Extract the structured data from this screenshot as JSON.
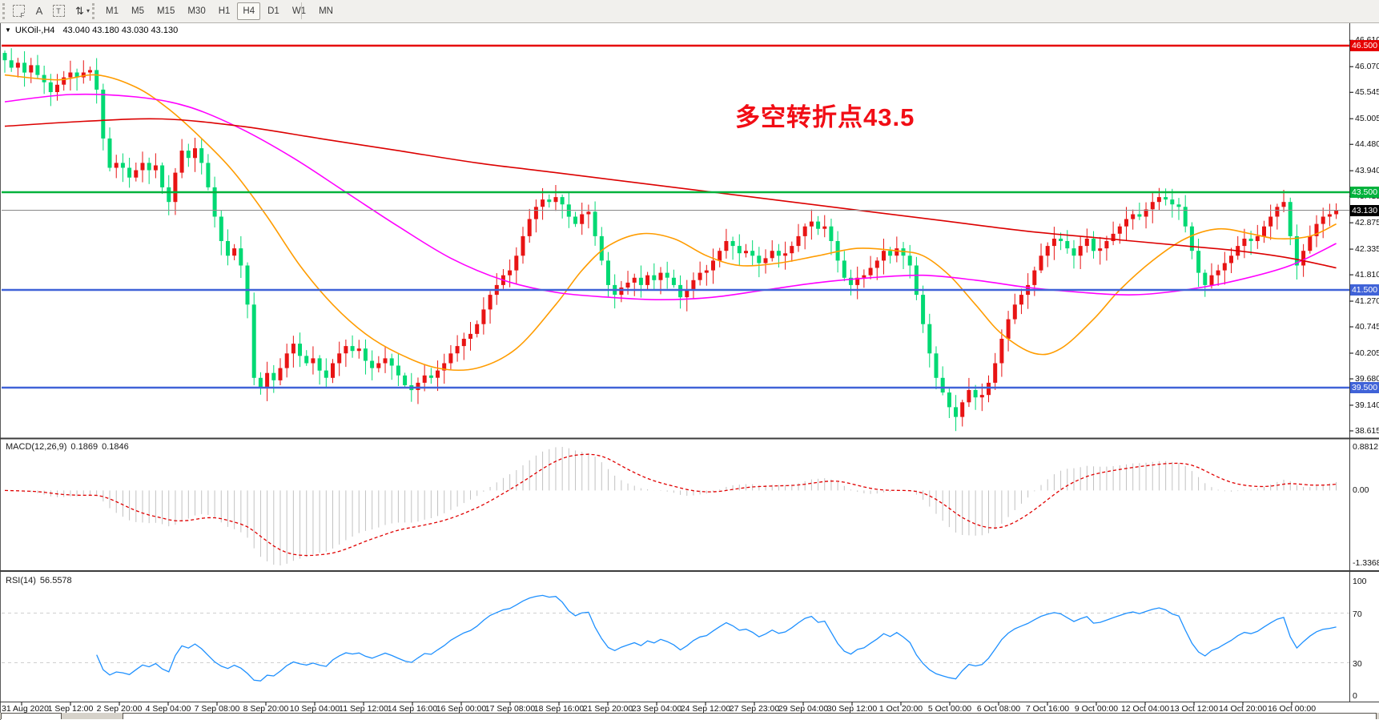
{
  "toolbar": {
    "tools": [
      {
        "id": "fibonacci-tool",
        "glyph": "F"
      },
      {
        "id": "text-tool",
        "glyph": "A"
      },
      {
        "id": "text-label-tool",
        "glyph": "T"
      },
      {
        "id": "arrows-tool",
        "glyph": "⇅",
        "caret": "▾"
      }
    ],
    "timeframes": [
      "M1",
      "M5",
      "M15",
      "M30",
      "H1",
      "H4",
      "D1",
      "W1",
      "MN"
    ],
    "selected_timeframe": "H4"
  },
  "header": {
    "dropdown_glyph": "▼",
    "symbol_period": "UKOil-,H4",
    "ohlc": "43.040 43.180 43.030 43.130"
  },
  "annotation": {
    "text": "多空转折点43.5",
    "color": "#f10d15"
  },
  "indicators": {
    "macd": {
      "label": "MACD(12,26,9)",
      "value_main": "0.1869",
      "value_signal": "0.1846",
      "axis_top": "0.8812",
      "axis_zero": "0.00",
      "axis_bottom": "-1.3368",
      "histogram_color": "#c2c2c2",
      "signal_color": "#e00000"
    },
    "rsi": {
      "label": "RSI(14)",
      "value": "56.5578",
      "axis": [
        "100",
        "70",
        "30",
        "0"
      ],
      "levels": [
        70,
        30
      ],
      "line_color": "#1e90ff",
      "level_color": "#cfcfcf"
    }
  },
  "price_axis": {
    "ticks": [
      "46.610",
      "46.070",
      "45.545",
      "45.005",
      "44.480",
      "43.940",
      "43.415",
      "42.875",
      "42.335",
      "41.810",
      "41.270",
      "40.745",
      "40.205",
      "39.680",
      "39.140",
      "38.615"
    ],
    "badges": [
      {
        "label": "46.500",
        "price": 46.5,
        "bg": "#e60000",
        "fg": "#ffffff"
      },
      {
        "label": "43.500",
        "price": 43.5,
        "bg": "#00b23c",
        "fg": "#ffffff"
      },
      {
        "label": "43.130",
        "price": 43.13,
        "bg": "#000000",
        "fg": "#ffffff"
      },
      {
        "label": "41.500",
        "price": 41.5,
        "bg": "#4063d8",
        "fg": "#ffffff"
      },
      {
        "label": "39.500",
        "price": 39.5,
        "bg": "#4063d8",
        "fg": "#ffffff"
      }
    ]
  },
  "chart_data": {
    "type": "candlestick",
    "symbol": "UKOil-",
    "timeframe": "H4",
    "title": "UKOil-,H4 43.040 43.180 43.030 43.130",
    "price_range": [
      38.45,
      46.98
    ],
    "current_price": 43.13,
    "up_color": "#e81414",
    "down_color": "#00d973",
    "levels": [
      {
        "price": 46.5,
        "color": "#e60000"
      },
      {
        "price": 43.5,
        "color": "#00b23c"
      },
      {
        "price": 41.5,
        "color": "#4063d8"
      },
      {
        "price": 39.5,
        "color": "#4063d8"
      }
    ],
    "first_open": 46.35,
    "closes": [
      46.2,
      46.05,
      46.15,
      45.95,
      46.1,
      45.9,
      45.75,
      45.55,
      45.7,
      45.85,
      45.95,
      45.85,
      45.95,
      46.0,
      45.6,
      44.6,
      44.0,
      44.1,
      44.0,
      43.8,
      43.95,
      44.1,
      43.95,
      44.05,
      43.6,
      43.3,
      43.9,
      44.35,
      44.2,
      44.4,
      44.1,
      43.6,
      43.0,
      42.5,
      42.2,
      42.35,
      42.0,
      41.2,
      39.7,
      39.5,
      39.8,
      39.65,
      39.9,
      40.2,
      40.4,
      40.15,
      40.0,
      40.1,
      39.85,
      39.7,
      40.0,
      40.2,
      40.35,
      40.25,
      40.3,
      40.05,
      39.9,
      40.0,
      40.1,
      39.95,
      39.75,
      39.55,
      39.45,
      39.6,
      39.75,
      39.7,
      39.85,
      40.0,
      40.2,
      40.35,
      40.5,
      40.6,
      40.8,
      41.1,
      41.4,
      41.6,
      41.8,
      41.9,
      42.2,
      42.6,
      42.95,
      43.2,
      43.35,
      43.3,
      43.4,
      43.25,
      43.0,
      42.85,
      43.05,
      43.1,
      42.6,
      42.1,
      41.6,
      41.4,
      41.55,
      41.65,
      41.75,
      41.6,
      41.8,
      41.7,
      41.85,
      41.75,
      41.6,
      41.35,
      41.5,
      41.7,
      41.85,
      41.9,
      42.1,
      42.3,
      42.5,
      42.4,
      42.25,
      42.3,
      42.2,
      42.05,
      42.15,
      42.3,
      42.2,
      42.25,
      42.4,
      42.6,
      42.8,
      42.9,
      42.75,
      42.8,
      42.5,
      42.1,
      41.75,
      41.6,
      41.75,
      41.8,
      41.95,
      42.1,
      42.3,
      42.2,
      42.35,
      42.2,
      42.0,
      41.4,
      40.8,
      40.2,
      39.7,
      39.4,
      39.1,
      38.9,
      39.2,
      39.45,
      39.3,
      39.35,
      39.6,
      40.0,
      40.5,
      40.9,
      41.2,
      41.4,
      41.6,
      41.9,
      42.2,
      42.4,
      42.55,
      42.5,
      42.35,
      42.2,
      42.4,
      42.55,
      42.3,
      42.35,
      42.5,
      42.65,
      42.8,
      42.95,
      43.05,
      43.0,
      43.15,
      43.3,
      43.4,
      43.35,
      43.25,
      43.2,
      42.8,
      42.3,
      41.85,
      41.6,
      41.8,
      41.9,
      42.05,
      42.2,
      42.4,
      42.55,
      42.5,
      42.6,
      42.8,
      43.0,
      43.2,
      43.3,
      42.6,
      42.0,
      42.3,
      42.6,
      42.85,
      43.0,
      43.05,
      43.13
    ],
    "ma_lines": [
      {
        "name": "ma-fast",
        "color": "#ff9c00",
        "points": [
          [
            0,
            45.9
          ],
          [
            8,
            45.8
          ],
          [
            14,
            45.9
          ],
          [
            20,
            45.65
          ],
          [
            25,
            45.2
          ],
          [
            30,
            44.6
          ],
          [
            35,
            43.9
          ],
          [
            40,
            43.0
          ],
          [
            45,
            42.0
          ],
          [
            50,
            41.2
          ],
          [
            55,
            40.6
          ],
          [
            60,
            40.2
          ],
          [
            66,
            39.9
          ],
          [
            72,
            39.9
          ],
          [
            78,
            40.3
          ],
          [
            84,
            41.2
          ],
          [
            88,
            41.9
          ],
          [
            92,
            42.4
          ],
          [
            97,
            42.65
          ],
          [
            102,
            42.55
          ],
          [
            107,
            42.2
          ],
          [
            112,
            42.0
          ],
          [
            118,
            42.05
          ],
          [
            124,
            42.2
          ],
          [
            130,
            42.35
          ],
          [
            136,
            42.3
          ],
          [
            140,
            42.2
          ],
          [
            144,
            41.8
          ],
          [
            148,
            41.2
          ],
          [
            152,
            40.6
          ],
          [
            157,
            40.2
          ],
          [
            161,
            40.3
          ],
          [
            166,
            40.9
          ],
          [
            170,
            41.5
          ],
          [
            175,
            42.1
          ],
          [
            180,
            42.55
          ],
          [
            185,
            42.75
          ],
          [
            190,
            42.65
          ],
          [
            194,
            42.55
          ],
          [
            199,
            42.6
          ],
          [
            203,
            42.85
          ]
        ]
      },
      {
        "name": "ma-mid",
        "color": "#ff00ff",
        "points": [
          [
            0,
            45.35
          ],
          [
            10,
            45.5
          ],
          [
            20,
            45.45
          ],
          [
            28,
            45.25
          ],
          [
            36,
            44.8
          ],
          [
            44,
            44.2
          ],
          [
            52,
            43.5
          ],
          [
            60,
            42.8
          ],
          [
            68,
            42.15
          ],
          [
            76,
            41.7
          ],
          [
            84,
            41.45
          ],
          [
            92,
            41.35
          ],
          [
            100,
            41.3
          ],
          [
            108,
            41.35
          ],
          [
            116,
            41.5
          ],
          [
            124,
            41.65
          ],
          [
            132,
            41.75
          ],
          [
            140,
            41.8
          ],
          [
            148,
            41.7
          ],
          [
            156,
            41.55
          ],
          [
            164,
            41.45
          ],
          [
            172,
            41.4
          ],
          [
            180,
            41.5
          ],
          [
            188,
            41.7
          ],
          [
            196,
            42.0
          ],
          [
            203,
            42.45
          ]
        ]
      },
      {
        "name": "ma-slow",
        "color": "#dc0000",
        "points": [
          [
            0,
            44.85
          ],
          [
            12,
            44.95
          ],
          [
            24,
            45.0
          ],
          [
            36,
            44.85
          ],
          [
            48,
            44.6
          ],
          [
            60,
            44.35
          ],
          [
            72,
            44.1
          ],
          [
            84,
            43.9
          ],
          [
            96,
            43.7
          ],
          [
            108,
            43.5
          ],
          [
            120,
            43.3
          ],
          [
            132,
            43.1
          ],
          [
            144,
            42.9
          ],
          [
            156,
            42.7
          ],
          [
            168,
            42.55
          ],
          [
            180,
            42.4
          ],
          [
            188,
            42.3
          ],
          [
            196,
            42.15
          ],
          [
            203,
            41.95
          ]
        ]
      }
    ],
    "macd_params": [
      12,
      26,
      9
    ],
    "rsi_period": 14,
    "time_labels": [
      "31 Aug 2020",
      "1 Sep 12:00",
      "2 Sep 20:00",
      "4 Sep 04:00",
      "7 Sep 08:00",
      "8 Sep 20:00",
      "10 Sep 04:00",
      "11 Sep 12:00",
      "14 Sep 16:00",
      "16 Sep 00:00",
      "17 Sep 08:00",
      "18 Sep 16:00",
      "21 Sep 20:00",
      "23 Sep 04:00",
      "24 Sep 12:00",
      "27 Sep 23:00",
      "29 Sep 04:00",
      "30 Sep 12:00",
      "1 Oct 20:00",
      "5 Oct 00:00",
      "6 Oct 08:00",
      "7 Oct 16:00",
      "9 Oct 00:00",
      "12 Oct 04:00",
      "13 Oct 12:00",
      "14 Oct 20:00",
      "16 Oct 00:00"
    ]
  }
}
